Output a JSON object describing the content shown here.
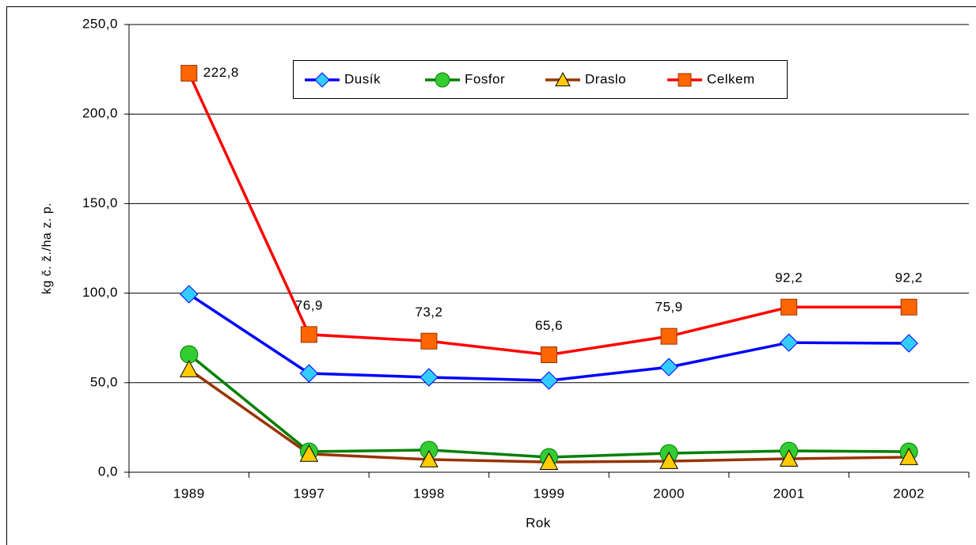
{
  "chart_data": {
    "type": "line",
    "xlabel": "Rok",
    "ylabel": "kg č. ž./ha z. p.",
    "categories": [
      "1989",
      "1997",
      "1998",
      "1999",
      "2000",
      "2001",
      "2002"
    ],
    "series": [
      {
        "name": "Dusík",
        "color": "#0000ff",
        "marker": "diamond",
        "marker_color": "#33ccff",
        "values": [
          99.4,
          55.2,
          53.0,
          51.2,
          58.7,
          72.4,
          72.0
        ]
      },
      {
        "name": "Fosfor",
        "color": "#008000",
        "marker": "circle",
        "marker_color": "#33cc33",
        "values": [
          65.8,
          11.5,
          12.4,
          8.4,
          10.6,
          11.9,
          11.5
        ]
      },
      {
        "name": "Draslo",
        "color": "#993300",
        "marker": "triangle",
        "marker_color": "#ffcc00",
        "values": [
          57.4,
          10.2,
          7.1,
          5.7,
          6.2,
          7.5,
          8.4
        ]
      },
      {
        "name": "Celkem",
        "color": "#ff0000",
        "marker": "square",
        "marker_color": "#ff6600",
        "values": [
          222.8,
          76.9,
          73.2,
          65.6,
          75.9,
          92.2,
          92.2
        ],
        "value_labels": [
          "222,8",
          "76,9",
          "73,2",
          "65,6",
          "75,9",
          "92,2",
          "92,2"
        ]
      }
    ],
    "ylim": [
      0,
      250
    ],
    "yticks": [
      {
        "value": 0,
        "label": "0,0"
      },
      {
        "value": 50,
        "label": "50,0"
      },
      {
        "value": 100,
        "label": "100,0"
      },
      {
        "value": 150,
        "label": "150,0"
      },
      {
        "value": 200,
        "label": "200,0"
      },
      {
        "value": 250,
        "label": "250,0"
      }
    ],
    "grid": true,
    "legend": "top"
  }
}
